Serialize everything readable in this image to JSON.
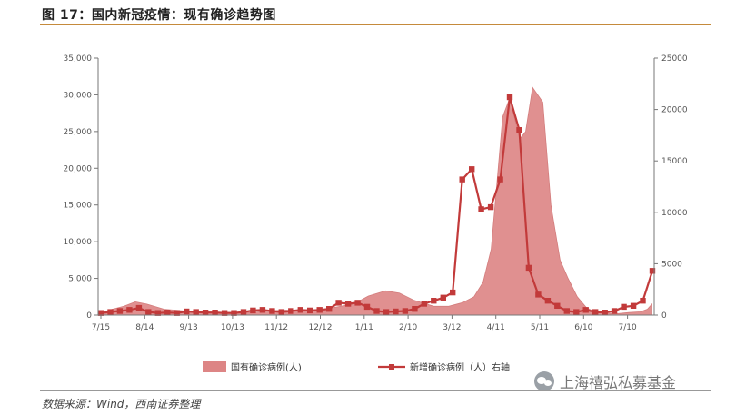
{
  "header": {
    "title": "图 17：国内新冠疫情：现有确诊趋势图"
  },
  "footer": {
    "source": "数据来源：Wind，西南证券整理",
    "watermark": "上海禧弘私募基金"
  },
  "colors": {
    "area": "#dd8585",
    "area_stroke": "#cf6f6f",
    "line": "#c23a3a",
    "axis": "#777777",
    "rule": "#c58a3b"
  },
  "chart_data": {
    "type": "area",
    "title": "",
    "xlabel": "",
    "ylabel": "",
    "grid": false,
    "legend_position": "bottom",
    "x_ticks": [
      "7/15",
      "8/14",
      "9/13",
      "10/13",
      "11/12",
      "12/12",
      "1/11",
      "2/10",
      "3/12",
      "4/11",
      "5/11",
      "6/10",
      "7/10"
    ],
    "y_left": {
      "min": 0,
      "max": 35000,
      "ticks": [
        "0",
        "5,000",
        "10,000",
        "15,000",
        "20,000",
        "25,000",
        "30,000",
        "35,000"
      ]
    },
    "y_right": {
      "min": 0,
      "max": 25000,
      "ticks": [
        "0",
        "5000",
        "10000",
        "15000",
        "20000",
        "25000"
      ]
    },
    "series": [
      {
        "name": "国有确诊病例(人)",
        "axis": "left",
        "type": "area",
        "points": [
          [
            0,
            300
          ],
          [
            10,
            800
          ],
          [
            20,
            1200
          ],
          [
            30,
            1800
          ],
          [
            40,
            1500
          ],
          [
            55,
            800
          ],
          [
            70,
            600
          ],
          [
            85,
            450
          ],
          [
            100,
            400
          ],
          [
            115,
            350
          ],
          [
            130,
            350
          ],
          [
            145,
            550
          ],
          [
            160,
            700
          ],
          [
            175,
            500
          ],
          [
            190,
            700
          ],
          [
            205,
            1100
          ],
          [
            220,
            1500
          ],
          [
            233,
            2600
          ],
          [
            248,
            3300
          ],
          [
            260,
            3000
          ],
          [
            273,
            2000
          ],
          [
            290,
            1200
          ],
          [
            303,
            1200
          ],
          [
            315,
            1700
          ],
          [
            325,
            2500
          ],
          [
            333,
            4500
          ],
          [
            340,
            9000
          ],
          [
            345,
            18000
          ],
          [
            350,
            27000
          ],
          [
            356,
            29500
          ],
          [
            365,
            24000
          ],
          [
            370,
            25000
          ],
          [
            376,
            31000
          ],
          [
            385,
            29000
          ],
          [
            392,
            15000
          ],
          [
            400,
            7500
          ],
          [
            407,
            5000
          ],
          [
            415,
            2500
          ],
          [
            423,
            1000
          ],
          [
            430,
            450
          ],
          [
            440,
            250
          ],
          [
            450,
            200
          ],
          [
            460,
            350
          ],
          [
            470,
            450
          ],
          [
            476,
            800
          ],
          [
            480,
            1500
          ]
        ]
      },
      {
        "name": "新增确诊病例（人）右轴",
        "axis": "right",
        "type": "line",
        "points": [
          [
            0,
            200
          ],
          [
            7,
            300
          ],
          [
            14,
            400
          ],
          [
            21,
            500
          ],
          [
            28,
            700
          ],
          [
            35,
            300
          ],
          [
            42,
            200
          ],
          [
            49,
            250
          ],
          [
            56,
            200
          ],
          [
            63,
            350
          ],
          [
            70,
            300
          ],
          [
            77,
            250
          ],
          [
            84,
            250
          ],
          [
            91,
            200
          ],
          [
            98,
            200
          ],
          [
            105,
            300
          ],
          [
            112,
            450
          ],
          [
            119,
            500
          ],
          [
            126,
            400
          ],
          [
            133,
            300
          ],
          [
            140,
            400
          ],
          [
            147,
            500
          ],
          [
            154,
            450
          ],
          [
            161,
            500
          ],
          [
            168,
            600
          ],
          [
            175,
            1200
          ],
          [
            182,
            1100
          ],
          [
            189,
            1200
          ],
          [
            196,
            800
          ],
          [
            203,
            400
          ],
          [
            210,
            300
          ],
          [
            217,
            350
          ],
          [
            224,
            400
          ],
          [
            231,
            600
          ],
          [
            238,
            1100
          ],
          [
            245,
            1400
          ],
          [
            252,
            1700
          ],
          [
            259,
            2200
          ],
          [
            266,
            13200
          ],
          [
            273,
            14200
          ],
          [
            280,
            10300
          ],
          [
            287,
            10500
          ],
          [
            294,
            13200
          ],
          [
            301,
            21200
          ],
          [
            308,
            18000
          ],
          [
            315,
            4600
          ],
          [
            322,
            2000
          ],
          [
            329,
            1400
          ],
          [
            336,
            900
          ],
          [
            343,
            400
          ],
          [
            350,
            300
          ],
          [
            357,
            500
          ],
          [
            364,
            300
          ],
          [
            371,
            250
          ],
          [
            378,
            400
          ],
          [
            385,
            800
          ],
          [
            392,
            900
          ],
          [
            399,
            1400
          ],
          [
            406,
            4300
          ]
        ]
      }
    ]
  }
}
